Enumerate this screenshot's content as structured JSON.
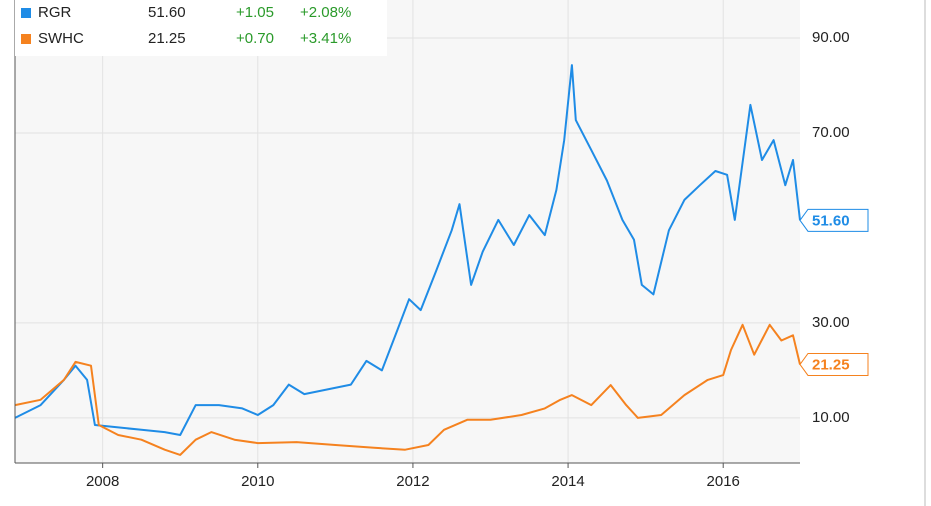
{
  "chart_data": {
    "type": "line",
    "xlim": [
      2006.87,
      2016.99
    ],
    "xticks": [
      2008,
      2010,
      2012,
      2014,
      2016
    ],
    "ylim": [
      0.5,
      98
    ],
    "yticks": [
      {
        "value": 10,
        "label": "10.00"
      },
      {
        "value": 30,
        "label": "30.00"
      },
      {
        "value": 70,
        "label": "70.00"
      },
      {
        "value": 90,
        "label": "90.00"
      }
    ],
    "grid": true,
    "series": [
      {
        "name": "RGR",
        "color": "#1f8ce6",
        "price": "51.60",
        "change": "+1.05",
        "change_pct": "+2.08%",
        "x": [
          2006.87,
          2007.2,
          2007.5,
          2007.65,
          2007.8,
          2007.9,
          2008.2,
          2008.5,
          2008.8,
          2009.0,
          2009.2,
          2009.5,
          2009.8,
          2010.0,
          2010.2,
          2010.4,
          2010.6,
          2010.9,
          2011.2,
          2011.4,
          2011.6,
          2011.8,
          2011.95,
          2012.1,
          2012.3,
          2012.5,
          2012.6,
          2012.75,
          2012.9,
          2013.1,
          2013.3,
          2013.5,
          2013.7,
          2013.85,
          2013.95,
          2014.05,
          2014.1,
          2014.3,
          2014.5,
          2014.7,
          2014.85,
          2014.95,
          2015.1,
          2015.3,
          2015.5,
          2015.7,
          2015.9,
          2016.05,
          2016.15,
          2016.35,
          2016.5,
          2016.65,
          2016.8,
          2016.9,
          2016.99
        ],
        "values": [
          10,
          12.7,
          18,
          21,
          18,
          8.5,
          8,
          7.5,
          7,
          6.4,
          12.7,
          12.7,
          12,
          10.6,
          12.7,
          17,
          15,
          16,
          17,
          22,
          20,
          28.5,
          35,
          32.7,
          41,
          49.5,
          55,
          38,
          45,
          51.7,
          46.4,
          52.7,
          48.5,
          58,
          68.5,
          84.3,
          72.7,
          66.4,
          60,
          51.7,
          47.5,
          38,
          36,
          49.5,
          55.9,
          59,
          62,
          61.2,
          51.7,
          75.9,
          64.3,
          68.5,
          59,
          64.3,
          51.6
        ]
      },
      {
        "name": "SWHC",
        "color": "#f5821f",
        "price": "21.25",
        "change": "+0.70",
        "change_pct": "+3.41%",
        "x": [
          2006.87,
          2007.2,
          2007.5,
          2007.65,
          2007.85,
          2007.95,
          2008.2,
          2008.5,
          2008.8,
          2009.0,
          2009.2,
          2009.4,
          2009.7,
          2010.0,
          2010.5,
          2011.0,
          2011.5,
          2011.9,
          2012.2,
          2012.4,
          2012.7,
          2013.0,
          2013.4,
          2013.7,
          2013.9,
          2014.05,
          2014.3,
          2014.55,
          2014.75,
          2014.9,
          2015.2,
          2015.5,
          2015.8,
          2016.0,
          2016.1,
          2016.25,
          2016.4,
          2016.6,
          2016.75,
          2016.9,
          2016.99
        ],
        "values": [
          12.7,
          13.8,
          18,
          21.8,
          21,
          8.5,
          6.4,
          5.4,
          3.3,
          2.2,
          5.4,
          7,
          5.4,
          4.7,
          4.9,
          4.3,
          3.7,
          3.3,
          4.3,
          7.5,
          9.6,
          9.6,
          10.6,
          12,
          13.8,
          14.8,
          12.7,
          16.9,
          12.7,
          10,
          10.6,
          14.8,
          18,
          19,
          24.3,
          29.6,
          23.3,
          29.6,
          26.3,
          27.4,
          21.25
        ]
      }
    ]
  }
}
